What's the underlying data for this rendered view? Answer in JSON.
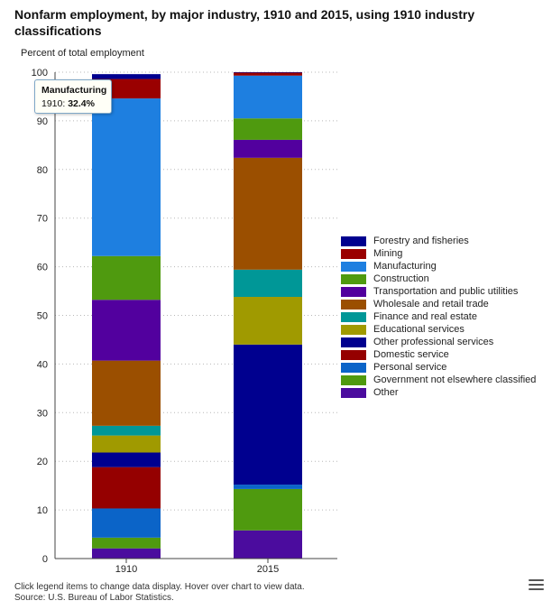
{
  "title": "Nonfarm employment, by major industry, 1910 and 2015, using 1910 industry classifications",
  "footer": {
    "note": "Click legend items to change data display. Hover over chart to view data.",
    "source": "Source: U.S. Bureau of Labor Statistics."
  },
  "tooltip": {
    "title": "Manufacturing",
    "category": "1910",
    "value": "32.4%"
  },
  "chart_data": {
    "type": "bar",
    "stacked": true,
    "categories": [
      "1910",
      "2015"
    ],
    "ylabel": "Percent of total employment",
    "xlabel": "",
    "ylim": [
      0,
      100
    ],
    "yticks": [
      0,
      10,
      20,
      30,
      40,
      50,
      60,
      70,
      80,
      90,
      100
    ],
    "grid": true,
    "legend_position": "right",
    "series": [
      {
        "name": "Other",
        "color": "#4b0c9e",
        "values": [
          2.1,
          5.8
        ]
      },
      {
        "name": "Government not elsewhere classified",
        "color": "#4f9a0f",
        "values": [
          2.2,
          8.5
        ]
      },
      {
        "name": "Personal service",
        "color": "#0b64c8",
        "values": [
          6.0,
          0.9
        ]
      },
      {
        "name": "Domestic service",
        "color": "#950000",
        "values": [
          8.5,
          0.0
        ]
      },
      {
        "name": "Other professional services",
        "color": "#00008f",
        "values": [
          3.0,
          28.8
        ]
      },
      {
        "name": "Educational services",
        "color": "#a09a00",
        "values": [
          3.5,
          9.8
        ]
      },
      {
        "name": "Finance and real estate",
        "color": "#009797",
        "values": [
          2.0,
          5.6
        ]
      },
      {
        "name": "Wholesale and retail trade",
        "color": "#9b4f00",
        "values": [
          13.4,
          23.0
        ]
      },
      {
        "name": "Transportation and public utilities",
        "color": "#52009e",
        "values": [
          12.5,
          3.7
        ]
      },
      {
        "name": "Construction",
        "color": "#4f9a0f",
        "values": [
          9.0,
          4.4
        ]
      },
      {
        "name": "Manufacturing",
        "color": "#1e7fe0",
        "values": [
          32.4,
          8.8
        ]
      },
      {
        "name": "Mining",
        "color": "#9a0000",
        "values": [
          4.0,
          0.6
        ]
      },
      {
        "name": "Forestry and fisheries",
        "color": "#00008f",
        "values": [
          1.0,
          0.1
        ]
      }
    ],
    "legend_order": [
      "Forestry and fisheries",
      "Mining",
      "Manufacturing",
      "Construction",
      "Transportation and public utilities",
      "Wholesale and retail trade",
      "Finance and real estate",
      "Educational services",
      "Other professional services",
      "Domestic service",
      "Personal service",
      "Government not elsewhere classified",
      "Other"
    ]
  }
}
